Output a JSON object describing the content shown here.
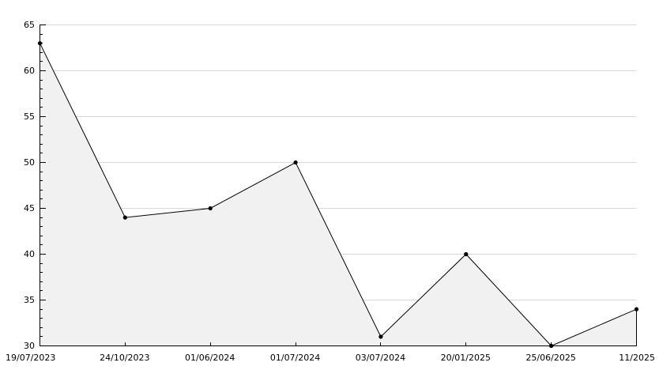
{
  "chart_data": {
    "type": "area",
    "title": "",
    "xlabel": "",
    "ylabel": "",
    "categories": [
      "19/07/2023",
      "24/10/2023",
      "01/06/2024",
      "01/07/2024",
      "03/07/2024",
      "20/01/2025",
      "25/06/2025",
      "11/2025"
    ],
    "values": [
      63,
      44,
      45,
      50,
      31,
      40,
      30,
      34
    ],
    "ylim": [
      30,
      65
    ],
    "y_major_step": 5,
    "y_minor_step": 1,
    "y_tick_labels": [
      "30",
      "35",
      "40",
      "45",
      "50",
      "55",
      "60",
      "65"
    ],
    "grid": "horizontal-major",
    "legend": "none",
    "marker": "filled-dot",
    "colors": {
      "background": "#ffffff",
      "area_fill": "#f1f1f1",
      "line": "#000000",
      "marker": "#000000",
      "grid": "#d8d8d8",
      "axis": "#000000",
      "text": "#000000"
    }
  }
}
